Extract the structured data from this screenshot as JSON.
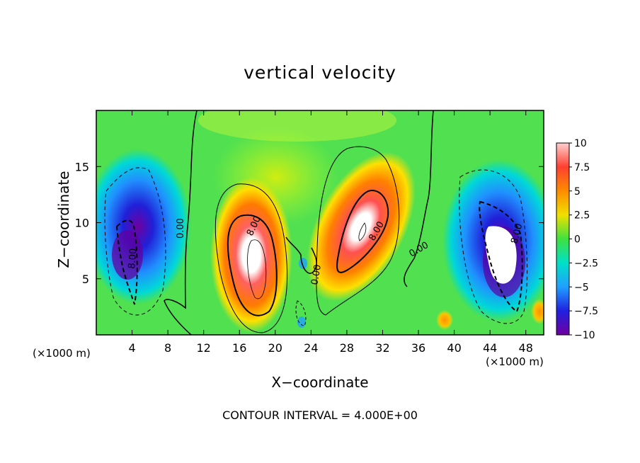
{
  "chart_data": {
    "type": "heatmap",
    "title": "vertical velocity",
    "xlabel": "X−coordinate",
    "ylabel": "Z−coordinate",
    "x_unit_label": "(×1000 m)",
    "xlim": [
      0,
      50
    ],
    "ylim": [
      0,
      20
    ],
    "x_ticks": [
      4,
      8,
      12,
      16,
      20,
      24,
      28,
      32,
      36,
      40,
      44,
      48
    ],
    "y_ticks": [
      5,
      10,
      15
    ],
    "colorbar": {
      "range": [
        -10,
        10
      ],
      "ticks": [
        10,
        7.5,
        5,
        2.5,
        0,
        -2.5,
        -5,
        -7.5,
        -10
      ],
      "tick_labels": [
        "10",
        "7.5",
        "5",
        "2.5",
        "0",
        "−2.5",
        "−5",
        "−7.5",
        "−10"
      ],
      "colors": [
        "#ffd0d0",
        "#ff4030",
        "#ff8c00",
        "#f0e000",
        "#40e040",
        "#00e0c8",
        "#20a0ff",
        "#2020e0",
        "#7000a0"
      ]
    },
    "contour_labels": [
      "0.00",
      "8.00",
      "0.00",
      "8.00",
      "8.00",
      "0.00",
      "8.00",
      "0.00",
      "8.00"
    ],
    "contour_interval": "CONTOUR INTERVAL = 4.000E+00",
    "features": [
      {
        "kind": "updraft",
        "x": 17.8,
        "z": 7.0,
        "value": 10
      },
      {
        "kind": "updraft",
        "x": 30.5,
        "z": 9.5,
        "value": 10
      },
      {
        "kind": "downdraft",
        "x": 3.5,
        "z": 7.0,
        "value": -10
      },
      {
        "kind": "downdraft",
        "x": 45.5,
        "z": 7.5,
        "value": -10
      }
    ]
  }
}
